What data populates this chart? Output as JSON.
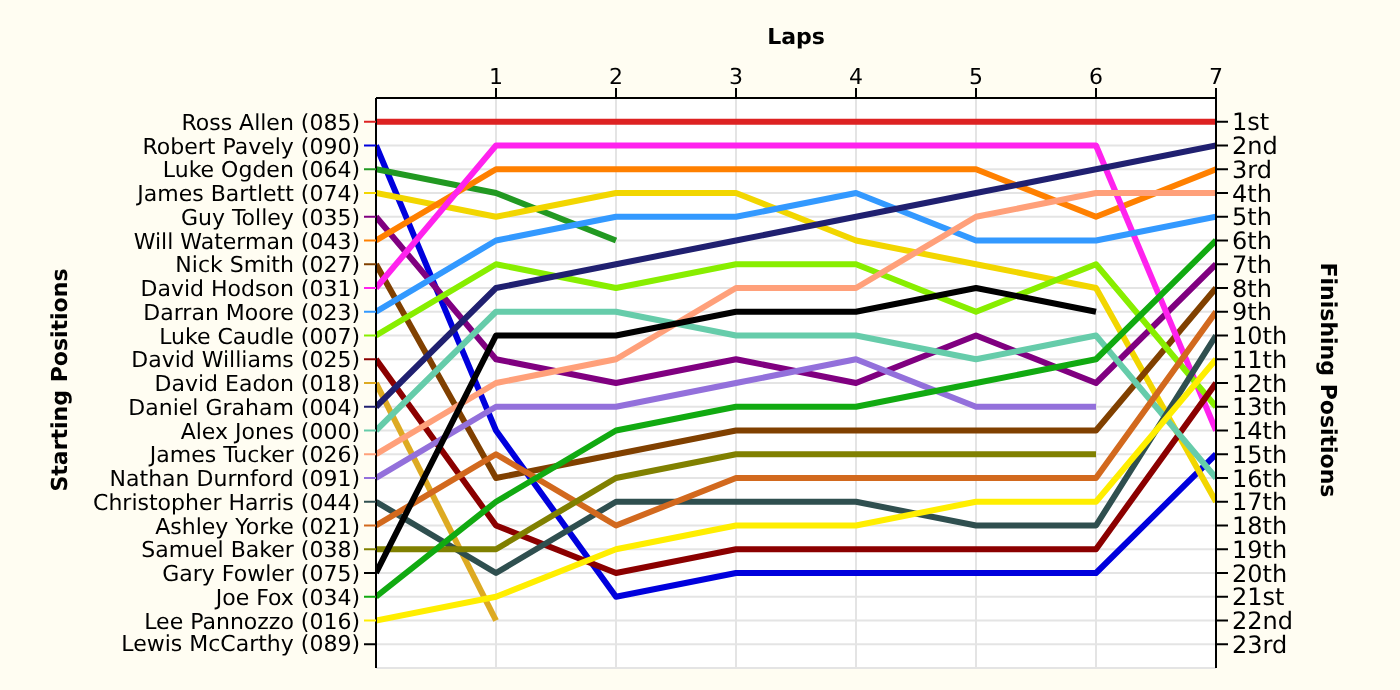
{
  "chart_data": {
    "type": "line",
    "xlabel": "Laps",
    "legend_title": "Starting Positions",
    "y2label": "Finishing Positions",
    "x": [
      0,
      1,
      2,
      3,
      4,
      5,
      6,
      7
    ],
    "xlim": [
      0,
      7
    ],
    "xticks": [
      1,
      2,
      3,
      4,
      5,
      6,
      7
    ],
    "y2lim": [
      24,
      0
    ],
    "y2ticks": [
      {
        "value": 1,
        "label": "1st"
      },
      {
        "value": 2,
        "label": "2nd"
      },
      {
        "value": 3,
        "label": "3rd"
      },
      {
        "value": 4,
        "label": "4th"
      },
      {
        "value": 5,
        "label": "5th"
      },
      {
        "value": 6,
        "label": "6th"
      },
      {
        "value": 7,
        "label": "7th"
      },
      {
        "value": 8,
        "label": "8th"
      },
      {
        "value": 9,
        "label": "9th"
      },
      {
        "value": 10,
        "label": "10th"
      },
      {
        "value": 11,
        "label": "11th"
      },
      {
        "value": 12,
        "label": "12th"
      },
      {
        "value": 13,
        "label": "13th"
      },
      {
        "value": 14,
        "label": "14th"
      },
      {
        "value": 15,
        "label": "15th"
      },
      {
        "value": 16,
        "label": "16th"
      },
      {
        "value": 17,
        "label": "17th"
      },
      {
        "value": 18,
        "label": "18th"
      },
      {
        "value": 19,
        "label": "19th"
      },
      {
        "value": 20,
        "label": "20th"
      },
      {
        "value": 21,
        "label": "21st"
      },
      {
        "value": 22,
        "label": "22nd"
      },
      {
        "value": 23,
        "label": "23rd"
      }
    ],
    "annotations": [
      "Lewis McCarthy (089)"
    ],
    "grid": true,
    "legend": "left",
    "marker": "none",
    "series": [
      {
        "name": "Ross Allen (085)",
        "axis": "y2",
        "color": "#dd2222",
        "values": [
          1,
          1,
          1,
          1,
          1,
          1,
          1,
          1
        ]
      },
      {
        "name": "Robert Pavely (090)",
        "axis": "y2",
        "color": "#0000dd",
        "values": [
          2,
          14,
          21,
          20,
          20,
          20,
          20,
          15
        ]
      },
      {
        "name": "Luke Ogden (064)",
        "axis": "y2",
        "color": "#229922",
        "values": [
          3,
          4,
          6,
          null,
          null,
          null,
          null,
          null
        ]
      },
      {
        "name": "James Bartlett (074)",
        "axis": "y2",
        "color": "#f2d600",
        "values": [
          4,
          5,
          4,
          4,
          6,
          7,
          8,
          17
        ]
      },
      {
        "name": "Guy Tolley (035)",
        "axis": "y2",
        "color": "#800080",
        "values": [
          5,
          11,
          12,
          11,
          12,
          10,
          12,
          7
        ]
      },
      {
        "name": "Will Waterman (043)",
        "axis": "y2",
        "color": "#ff8000",
        "values": [
          6,
          3,
          3,
          3,
          3,
          3,
          5,
          3
        ]
      },
      {
        "name": "Nick Smith (027)",
        "axis": "y2",
        "color": "#804000",
        "values": [
          7,
          16,
          15,
          14,
          14,
          14,
          14,
          8
        ]
      },
      {
        "name": "David Hodson (031)",
        "axis": "y2",
        "color": "#ff22ee",
        "values": [
          8,
          2,
          2,
          2,
          2,
          2,
          2,
          14
        ]
      },
      {
        "name": "Darran Moore (023)",
        "axis": "y2",
        "color": "#3399ff",
        "values": [
          9,
          6,
          5,
          5,
          4,
          6,
          6,
          5
        ]
      },
      {
        "name": "Luke Caudle (007)",
        "axis": "y2",
        "color": "#88ee00",
        "values": [
          10,
          7,
          8,
          7,
          7,
          9,
          7,
          13
        ]
      },
      {
        "name": "David Williams (025)",
        "axis": "y2",
        "color": "#8b0000",
        "values": [
          11,
          18,
          20,
          19,
          19,
          19,
          19,
          12
        ]
      },
      {
        "name": "David Eadon (018)",
        "axis": "y2",
        "color": "#ddaa22",
        "values": [
          12,
          22,
          null,
          null,
          null,
          null,
          null,
          null
        ]
      },
      {
        "name": "Daniel Graham (004)",
        "axis": "y2",
        "color": "#202070",
        "values": [
          13,
          8,
          7,
          6,
          5,
          4,
          3,
          2
        ]
      },
      {
        "name": "Alex Jones (000)",
        "axis": "y2",
        "color": "#66ccaa",
        "values": [
          14,
          9,
          9,
          10,
          10,
          11,
          10,
          16
        ]
      },
      {
        "name": "James Tucker (026)",
        "axis": "y2",
        "color": "#ffa07a",
        "values": [
          15,
          12,
          11,
          8,
          8,
          5,
          4,
          4
        ]
      },
      {
        "name": "Nathan Durnford (091)",
        "axis": "y2",
        "color": "#9370db",
        "values": [
          16,
          13,
          13,
          12,
          11,
          13,
          13,
          null
        ]
      },
      {
        "name": "Christopher Harris (044)",
        "axis": "y2",
        "color": "#2f4f4f",
        "values": [
          17,
          20,
          17,
          17,
          17,
          18,
          18,
          10
        ]
      },
      {
        "name": "Ashley Yorke (021)",
        "axis": "y2",
        "color": "#d2691e",
        "values": [
          18,
          15,
          18,
          16,
          16,
          16,
          16,
          9
        ]
      },
      {
        "name": "Samuel Baker (038)",
        "axis": "y2",
        "color": "#808000",
        "values": [
          19,
          19,
          16,
          15,
          15,
          15,
          15,
          null
        ]
      },
      {
        "name": "Gary Fowler (075)",
        "axis": "y2",
        "color": "#000000",
        "values": [
          20,
          10,
          10,
          9,
          9,
          8,
          9,
          null
        ]
      },
      {
        "name": "Joe Fox (034)",
        "axis": "y2",
        "color": "#11aa11",
        "values": [
          21,
          17,
          14,
          13,
          13,
          12,
          11,
          6
        ]
      },
      {
        "name": "Lee Pannozzo (016)",
        "axis": "y2",
        "color": "#ffee00",
        "values": [
          22,
          21,
          19,
          18,
          18,
          17,
          17,
          11
        ]
      }
    ]
  }
}
